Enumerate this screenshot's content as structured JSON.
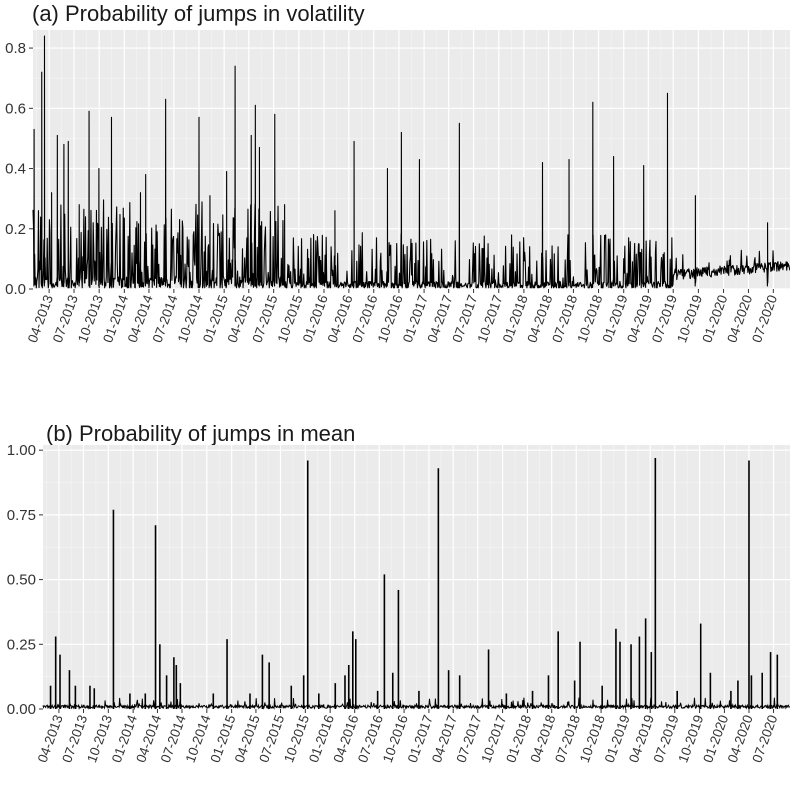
{
  "chart_data": [
    {
      "type": "line",
      "title": "(a) Probability of jumps in volatility",
      "xlabel": "",
      "ylabel": "",
      "xlim": [
        "2013-02-01",
        "2020-08-31"
      ],
      "ylim": [
        0,
        0.86
      ],
      "y_ticks": [
        0.0,
        0.2,
        0.4,
        0.6,
        0.8
      ],
      "y_tick_labels": [
        "0.0",
        "0.2",
        "0.4",
        "0.6",
        "0.8"
      ],
      "x_ticks": [
        "2013-04-01",
        "2013-07-01",
        "2013-10-01",
        "2014-01-01",
        "2014-04-01",
        "2014-07-01",
        "2014-10-01",
        "2015-01-01",
        "2015-04-01",
        "2015-07-01",
        "2015-10-01",
        "2016-01-01",
        "2016-04-01",
        "2016-07-01",
        "2016-10-01",
        "2017-01-01",
        "2017-04-01",
        "2017-07-01",
        "2017-10-01",
        "2018-01-01",
        "2018-04-01",
        "2018-07-01",
        "2018-10-01",
        "2019-01-01",
        "2019-04-01",
        "2019-07-01",
        "2019-10-01",
        "2020-01-01",
        "2020-04-01",
        "2020-07-01"
      ],
      "x_tick_labels": [
        "04-2013",
        "07-2013",
        "10-2013",
        "01-2014",
        "04-2014",
        "07-2014",
        "10-2014",
        "01-2015",
        "04-2015",
        "07-2015",
        "10-2015",
        "01-2016",
        "04-2016",
        "07-2016",
        "10-2016",
        "01-2017",
        "04-2017",
        "07-2017",
        "10-2017",
        "01-2018",
        "04-2018",
        "07-2018",
        "10-2018",
        "01-2019",
        "04-2019",
        "07-2019",
        "10-2019",
        "01-2020",
        "04-2020",
        "07-2020"
      ],
      "grid": true,
      "background": "#ebebeb",
      "line_color": "#000000",
      "peaks": [
        {
          "x": "2013-02-05",
          "y": 0.53
        },
        {
          "x": "2013-03-05",
          "y": 0.72
        },
        {
          "x": "2013-03-15",
          "y": 0.84
        },
        {
          "x": "2013-04-10",
          "y": 0.32
        },
        {
          "x": "2013-05-01",
          "y": 0.51
        },
        {
          "x": "2013-05-25",
          "y": 0.48
        },
        {
          "x": "2013-06-10",
          "y": 0.49
        },
        {
          "x": "2013-07-20",
          "y": 0.28
        },
        {
          "x": "2013-08-25",
          "y": 0.59
        },
        {
          "x": "2013-09-30",
          "y": 0.4
        },
        {
          "x": "2013-11-15",
          "y": 0.57
        },
        {
          "x": "2014-03-01",
          "y": 0.32
        },
        {
          "x": "2014-03-20",
          "y": 0.38
        },
        {
          "x": "2014-06-01",
          "y": 0.63
        },
        {
          "x": "2014-10-01",
          "y": 0.57
        },
        {
          "x": "2014-11-10",
          "y": 0.31
        },
        {
          "x": "2015-01-10",
          "y": 0.39
        },
        {
          "x": "2015-02-10",
          "y": 0.74
        },
        {
          "x": "2015-04-10",
          "y": 0.51
        },
        {
          "x": "2015-04-25",
          "y": 0.61
        },
        {
          "x": "2015-05-10",
          "y": 0.47
        },
        {
          "x": "2015-07-05",
          "y": 0.58
        },
        {
          "x": "2015-08-10",
          "y": 0.28
        },
        {
          "x": "2016-02-10",
          "y": 0.26
        },
        {
          "x": "2016-04-20",
          "y": 0.49
        },
        {
          "x": "2016-08-20",
          "y": 0.4
        },
        {
          "x": "2016-10-10",
          "y": 0.52
        },
        {
          "x": "2016-12-15",
          "y": 0.43
        },
        {
          "x": "2017-05-10",
          "y": 0.55
        },
        {
          "x": "2018-03-10",
          "y": 0.42
        },
        {
          "x": "2018-06-15",
          "y": 0.43
        },
        {
          "x": "2018-09-10",
          "y": 0.62
        },
        {
          "x": "2018-11-25",
          "y": 0.44
        },
        {
          "x": "2019-03-15",
          "y": 0.41
        },
        {
          "x": "2019-06-10",
          "y": 0.65
        },
        {
          "x": "2019-09-20",
          "y": 0.31
        },
        {
          "x": "2020-06-10",
          "y": 0.22
        }
      ]
    },
    {
      "type": "bar",
      "title": "(b) Probability of jumps in mean",
      "xlabel": "",
      "ylabel": "",
      "xlim": [
        "2013-02-01",
        "2020-08-31"
      ],
      "ylim": [
        0,
        1.02
      ],
      "y_ticks": [
        0.0,
        0.25,
        0.5,
        0.75,
        1.0
      ],
      "y_tick_labels": [
        "0.00",
        "0.25",
        "0.50",
        "0.75",
        "1.00"
      ],
      "x_ticks": [
        "2013-04-01",
        "2013-07-01",
        "2013-10-01",
        "2014-01-01",
        "2014-04-01",
        "2014-07-01",
        "2014-10-01",
        "2015-01-01",
        "2015-04-01",
        "2015-07-01",
        "2015-10-01",
        "2016-01-01",
        "2016-04-01",
        "2016-07-01",
        "2016-10-01",
        "2017-01-01",
        "2017-04-01",
        "2017-07-01",
        "2017-10-01",
        "2018-01-01",
        "2018-04-01",
        "2018-07-01",
        "2018-10-01",
        "2019-01-01",
        "2019-04-01",
        "2019-07-01",
        "2019-10-01",
        "2020-01-01",
        "2020-04-01",
        "2020-07-01"
      ],
      "x_tick_labels": [
        "04-2013",
        "07-2013",
        "10-2013",
        "01-2014",
        "04-2014",
        "07-2014",
        "10-2014",
        "01-2015",
        "04-2015",
        "07-2015",
        "10-2015",
        "01-2016",
        "04-2016",
        "07-2016",
        "10-2016",
        "01-2017",
        "04-2017",
        "07-2017",
        "10-2017",
        "01-2018",
        "04-2018",
        "07-2018",
        "10-2018",
        "01-2019",
        "04-2019",
        "07-2019",
        "10-2019",
        "01-2020",
        "04-2020",
        "07-2020"
      ],
      "grid": true,
      "background": "#ebebeb",
      "line_color": "#000000",
      "spikes": [
        {
          "x": "2013-03-01",
          "y": 0.09
        },
        {
          "x": "2013-03-20",
          "y": 0.28
        },
        {
          "x": "2013-04-05",
          "y": 0.21
        },
        {
          "x": "2013-05-10",
          "y": 0.15
        },
        {
          "x": "2013-06-01",
          "y": 0.09
        },
        {
          "x": "2013-07-25",
          "y": 0.09
        },
        {
          "x": "2013-08-10",
          "y": 0.08
        },
        {
          "x": "2013-10-20",
          "y": 0.77
        },
        {
          "x": "2013-12-20",
          "y": 0.06
        },
        {
          "x": "2014-02-15",
          "y": 0.06
        },
        {
          "x": "2014-03-25",
          "y": 0.71
        },
        {
          "x": "2014-04-10",
          "y": 0.25
        },
        {
          "x": "2014-05-05",
          "y": 0.13
        },
        {
          "x": "2014-06-01",
          "y": 0.2
        },
        {
          "x": "2014-06-10",
          "y": 0.17
        },
        {
          "x": "2014-06-25",
          "y": 0.1
        },
        {
          "x": "2014-10-25",
          "y": 0.06
        },
        {
          "x": "2014-12-15",
          "y": 0.27
        },
        {
          "x": "2015-03-10",
          "y": 0.06
        },
        {
          "x": "2015-04-25",
          "y": 0.21
        },
        {
          "x": "2015-05-20",
          "y": 0.18
        },
        {
          "x": "2015-08-10",
          "y": 0.09
        },
        {
          "x": "2015-09-25",
          "y": 0.13
        },
        {
          "x": "2015-10-10",
          "y": 0.96
        },
        {
          "x": "2015-11-20",
          "y": 0.06
        },
        {
          "x": "2016-01-20",
          "y": 0.1
        },
        {
          "x": "2016-02-25",
          "y": 0.13
        },
        {
          "x": "2016-03-10",
          "y": 0.17
        },
        {
          "x": "2016-03-25",
          "y": 0.3
        },
        {
          "x": "2016-04-05",
          "y": 0.27
        },
        {
          "x": "2016-06-25",
          "y": 0.07
        },
        {
          "x": "2016-07-20",
          "y": 0.52
        },
        {
          "x": "2016-08-20",
          "y": 0.14
        },
        {
          "x": "2016-09-10",
          "y": 0.46
        },
        {
          "x": "2016-11-25",
          "y": 0.07
        },
        {
          "x": "2017-02-05",
          "y": 0.93
        },
        {
          "x": "2017-03-15",
          "y": 0.15
        },
        {
          "x": "2017-04-25",
          "y": 0.13
        },
        {
          "x": "2017-08-10",
          "y": 0.23
        },
        {
          "x": "2017-10-15",
          "y": 0.06
        },
        {
          "x": "2018-01-20",
          "y": 0.07
        },
        {
          "x": "2018-03-20",
          "y": 0.13
        },
        {
          "x": "2018-04-25",
          "y": 0.3
        },
        {
          "x": "2018-06-25",
          "y": 0.11
        },
        {
          "x": "2018-07-15",
          "y": 0.26
        },
        {
          "x": "2018-10-05",
          "y": 0.09
        },
        {
          "x": "2018-11-25",
          "y": 0.31
        },
        {
          "x": "2018-12-10",
          "y": 0.26
        },
        {
          "x": "2019-01-20",
          "y": 0.25
        },
        {
          "x": "2019-02-20",
          "y": 0.28
        },
        {
          "x": "2019-03-15",
          "y": 0.35
        },
        {
          "x": "2019-04-05",
          "y": 0.22
        },
        {
          "x": "2019-04-20",
          "y": 0.97
        },
        {
          "x": "2019-07-10",
          "y": 0.07
        },
        {
          "x": "2019-10-05",
          "y": 0.33
        },
        {
          "x": "2019-11-10",
          "y": 0.14
        },
        {
          "x": "2020-01-25",
          "y": 0.07
        },
        {
          "x": "2020-02-20",
          "y": 0.11
        },
        {
          "x": "2020-04-01",
          "y": 0.96
        },
        {
          "x": "2020-04-10",
          "y": 0.13
        },
        {
          "x": "2020-05-20",
          "y": 0.14
        },
        {
          "x": "2020-06-20",
          "y": 0.22
        },
        {
          "x": "2020-07-15",
          "y": 0.21
        }
      ]
    }
  ]
}
